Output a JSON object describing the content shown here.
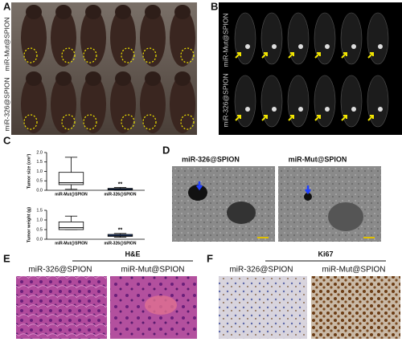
{
  "figure": {
    "A": {
      "letter": "A",
      "row_labels": [
        "miR-Mut@SPION",
        "miR-326@SPION"
      ]
    },
    "B": {
      "letter": "B",
      "row_labels": [
        "miR-Mut@SPION",
        "miR-326@SPION"
      ]
    },
    "C": {
      "letter": "C"
    },
    "D": {
      "letter": "D",
      "labels": [
        "miR-326@SPION",
        "miR-Mut@SPION"
      ]
    },
    "E": {
      "letter": "E",
      "title": "H&E",
      "labels": [
        "miR-326@SPION",
        "miR-Mut@SPION"
      ]
    },
    "F": {
      "letter": "F",
      "title": "Ki67",
      "labels": [
        "miR-326@SPION",
        "miR-Mut@SPION"
      ]
    }
  },
  "chart_data": [
    {
      "type": "box",
      "ylabel": "Tumor size (cm³)",
      "categories": [
        "miR-Mut@SPION",
        "miR-326@SPION"
      ],
      "colors": [
        "#ffffff",
        "#3a6fd8"
      ],
      "boxes": [
        {
          "min": 0.05,
          "q1": 0.3,
          "median": 0.4,
          "q3": 0.95,
          "max": 1.75
        },
        {
          "min": 0,
          "q1": 0.02,
          "median": 0.05,
          "q3": 0.1,
          "max": 0.15
        }
      ],
      "annotation": "**",
      "ylim": [
        0,
        2
      ],
      "yticks": [
        {
          "value": 0,
          "label": "0.0"
        },
        0.5,
        {
          "value": 1,
          "label": "1.0"
        },
        1.5,
        {
          "value": 2,
          "label": "2.0"
        }
      ]
    },
    {
      "type": "box",
      "ylabel": "Tumor weight (g)",
      "categories": [
        "miR-Mut@SPION",
        "miR-326@SPION"
      ],
      "colors": [
        "#ffffff",
        "#3a6fd8"
      ],
      "boxes": [
        {
          "min": 0.5,
          "q1": 0.5,
          "median": 0.6,
          "q3": 0.9,
          "max": 1.2
        },
        {
          "min": 0.1,
          "q1": 0.15,
          "median": 0.2,
          "q3": 0.25,
          "max": 0.3
        }
      ],
      "annotation": "**",
      "ylim": [
        0,
        1.5
      ],
      "yticks": [
        {
          "value": 0,
          "label": "0.0"
        },
        0.5,
        {
          "value": 1,
          "label": "1.0"
        },
        1.5
      ]
    }
  ]
}
